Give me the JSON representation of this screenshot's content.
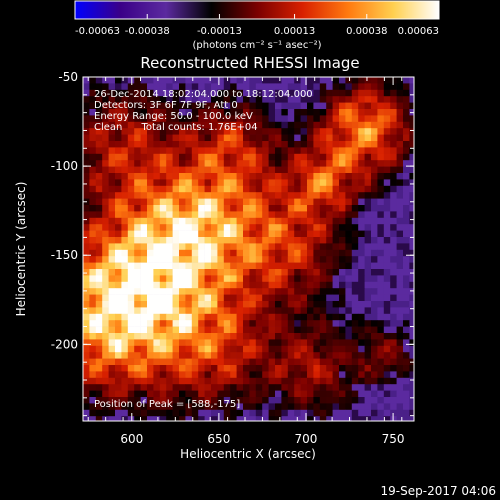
{
  "chart_data": {
    "type": "heatmap",
    "title": "Reconstructed RHESSI Image",
    "xlabel": "Heliocentric X (arcsec)",
    "ylabel": "Heliocentric Y (arcsec)",
    "xlim": [
      572,
      762
    ],
    "ylim": [
      -243,
      -50
    ],
    "x_ticks": [
      600,
      650,
      700,
      750
    ],
    "y_ticks": [
      -50,
      -100,
      -150,
      -200
    ],
    "colorbar": {
      "range": [
        -0.00063,
        0.00063
      ],
      "tick_values": [
        -0.00063,
        -0.00038,
        -0.00013,
        0.00013,
        0.00038,
        0.00063
      ],
      "tick_labels": [
        "-0.00063",
        "-0.00038",
        "-0.00013",
        "0.00013",
        "0.00038",
        "0.00063"
      ],
      "units_label": "(photons cm⁻² s⁻¹ asec⁻²)",
      "colors": [
        "#0000ff",
        "#3a0088",
        "#5b2a9f",
        "#000000",
        "#7a0000",
        "#d82000",
        "#ff7a10",
        "#ffd050",
        "#ffffff"
      ]
    },
    "annotations": [
      "26-Dec-2014 18:02:04.000 to 18:12:04.000",
      "Detectors: 3F 6F 7F 9F, Att 0",
      "Energy Range: 50.0 - 100.0 keV",
      "Clean      Total counts: 1.76E+04"
    ],
    "peak_label": "Position of Peak = [588,-175]",
    "peak_position": [
      588,
      -175
    ],
    "timestamp": "19-Sep-2017 04:06",
    "background_color": "#5b2a9f",
    "grid": false
  }
}
